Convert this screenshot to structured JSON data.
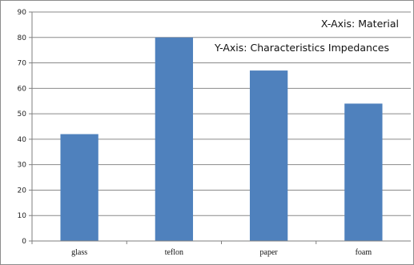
{
  "chart_data": {
    "type": "bar",
    "categories": [
      "glass",
      "teflon",
      "paper",
      "foam"
    ],
    "values": [
      42,
      80,
      67,
      54
    ],
    "title": "",
    "xlabel": "",
    "ylabel": "",
    "ylim": [
      0,
      90
    ],
    "yticks": [
      0,
      10,
      20,
      30,
      40,
      50,
      60,
      70,
      80,
      90
    ],
    "grid": true,
    "legend": "none",
    "annotations": [
      "X-Axis: Material",
      "Y-Axis: Characteristics Impedances"
    ],
    "colors": {
      "bar": "#4f81bd",
      "grid": "#8a8a8a",
      "axis": "#7f7f7f"
    }
  }
}
